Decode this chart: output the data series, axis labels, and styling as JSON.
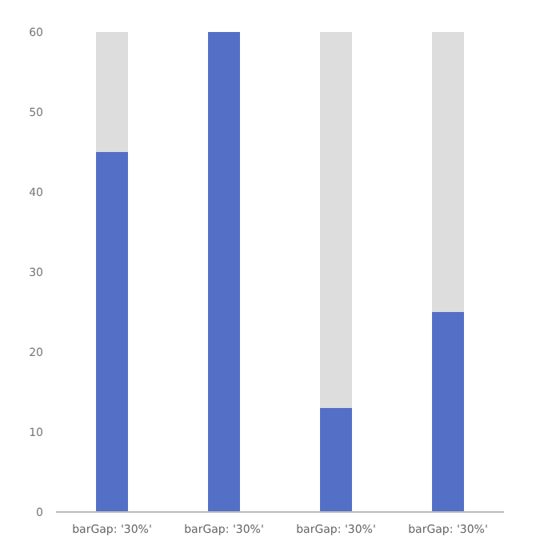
{
  "chart_data": {
    "type": "bar",
    "stacked": true,
    "categories": [
      "barGap: '30%'",
      "barGap: '30%'",
      "barGap: '30%'",
      "barGap: '30%'"
    ],
    "series": [
      {
        "color": "#5470c6",
        "values": [
          45,
          60,
          13,
          25
        ]
      },
      {
        "color": "#dddddd",
        "values": [
          15,
          0,
          47,
          35
        ]
      }
    ],
    "ylim": [
      0,
      60
    ],
    "yticks": [
      0,
      10,
      20,
      30,
      40,
      50,
      60
    ],
    "legend": false
  }
}
